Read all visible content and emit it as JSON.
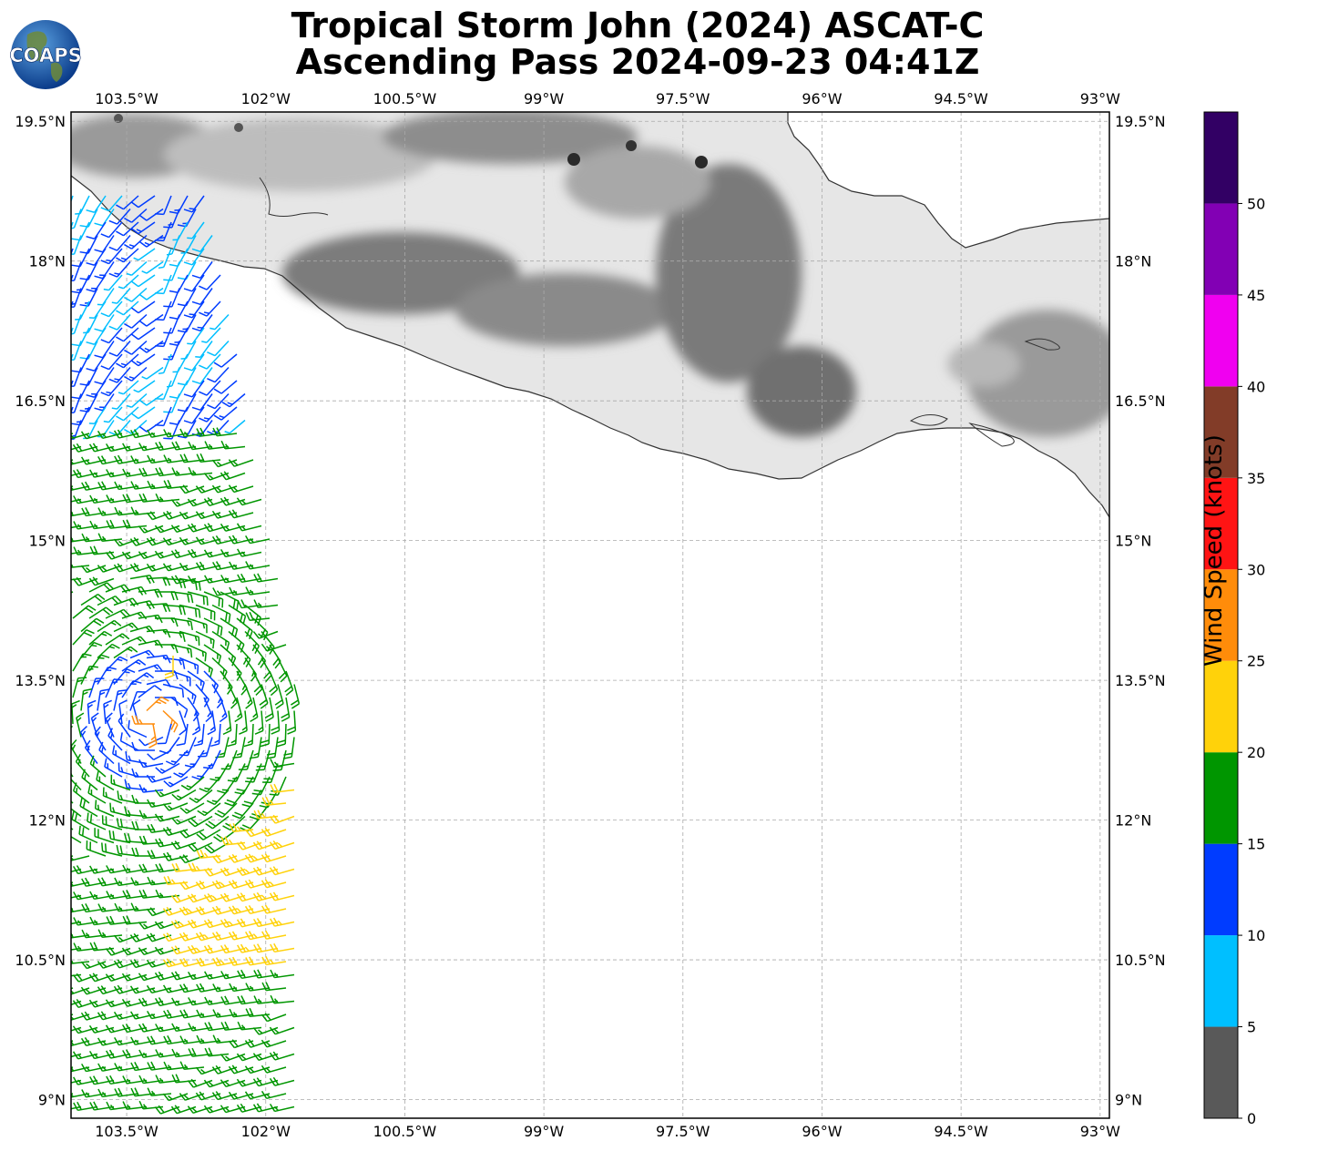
{
  "title": {
    "line1": "Tropical Storm John (2024) ASCAT-C",
    "line2": "Ascending Pass 2024-09-23 04:41Z"
  },
  "logo": {
    "text": "COAPS",
    "icon": "globe-logo-icon"
  },
  "map": {
    "lon_labels": [
      "103.5°W",
      "102°W",
      "100.5°W",
      "99°W",
      "97.5°W",
      "96°W",
      "94.5°W",
      "93°W"
    ],
    "lat_labels": [
      "19.5°N",
      "18°N",
      "16.5°N",
      "15°N",
      "13.5°N",
      "12°N",
      "10.5°N",
      "9°N"
    ],
    "lon_values": [
      -103.5,
      -102,
      -100.5,
      -99,
      -97.5,
      -96,
      -94.5,
      -93
    ],
    "lat_values": [
      19.5,
      18,
      16.5,
      15,
      13.5,
      12,
      10.5,
      9
    ],
    "extent": {
      "lon_min": -104.1,
      "lon_max": -92.9,
      "lat_min": 8.8,
      "lat_max": 19.6
    },
    "gridlines": true,
    "land_shading": "grayscale-elevation",
    "coast_color": "#333333"
  },
  "colorbar": {
    "label": "Wind Speed (knots)",
    "ticks": [
      "0",
      "5",
      "10",
      "15",
      "20",
      "25",
      "30",
      "35",
      "40",
      "45",
      "50"
    ],
    "bins": [
      {
        "from": 0,
        "to": 5,
        "color": "#595959"
      },
      {
        "from": 5,
        "to": 10,
        "color": "#00bfff"
      },
      {
        "from": 10,
        "to": 15,
        "color": "#003cff"
      },
      {
        "from": 15,
        "to": 20,
        "color": "#009600"
      },
      {
        "from": 20,
        "to": 25,
        "color": "#ffd20a"
      },
      {
        "from": 25,
        "to": 30,
        "color": "#ff8c0a"
      },
      {
        "from": 30,
        "to": 35,
        "color": "#ff1414"
      },
      {
        "from": 35,
        "to": 40,
        "color": "#823c28"
      },
      {
        "from": 40,
        "to": 45,
        "color": "#f000f0"
      },
      {
        "from": 45,
        "to": 50,
        "color": "#8200b4"
      },
      {
        "from": 50,
        "to": 55,
        "color": "#320064"
      }
    ]
  }
}
